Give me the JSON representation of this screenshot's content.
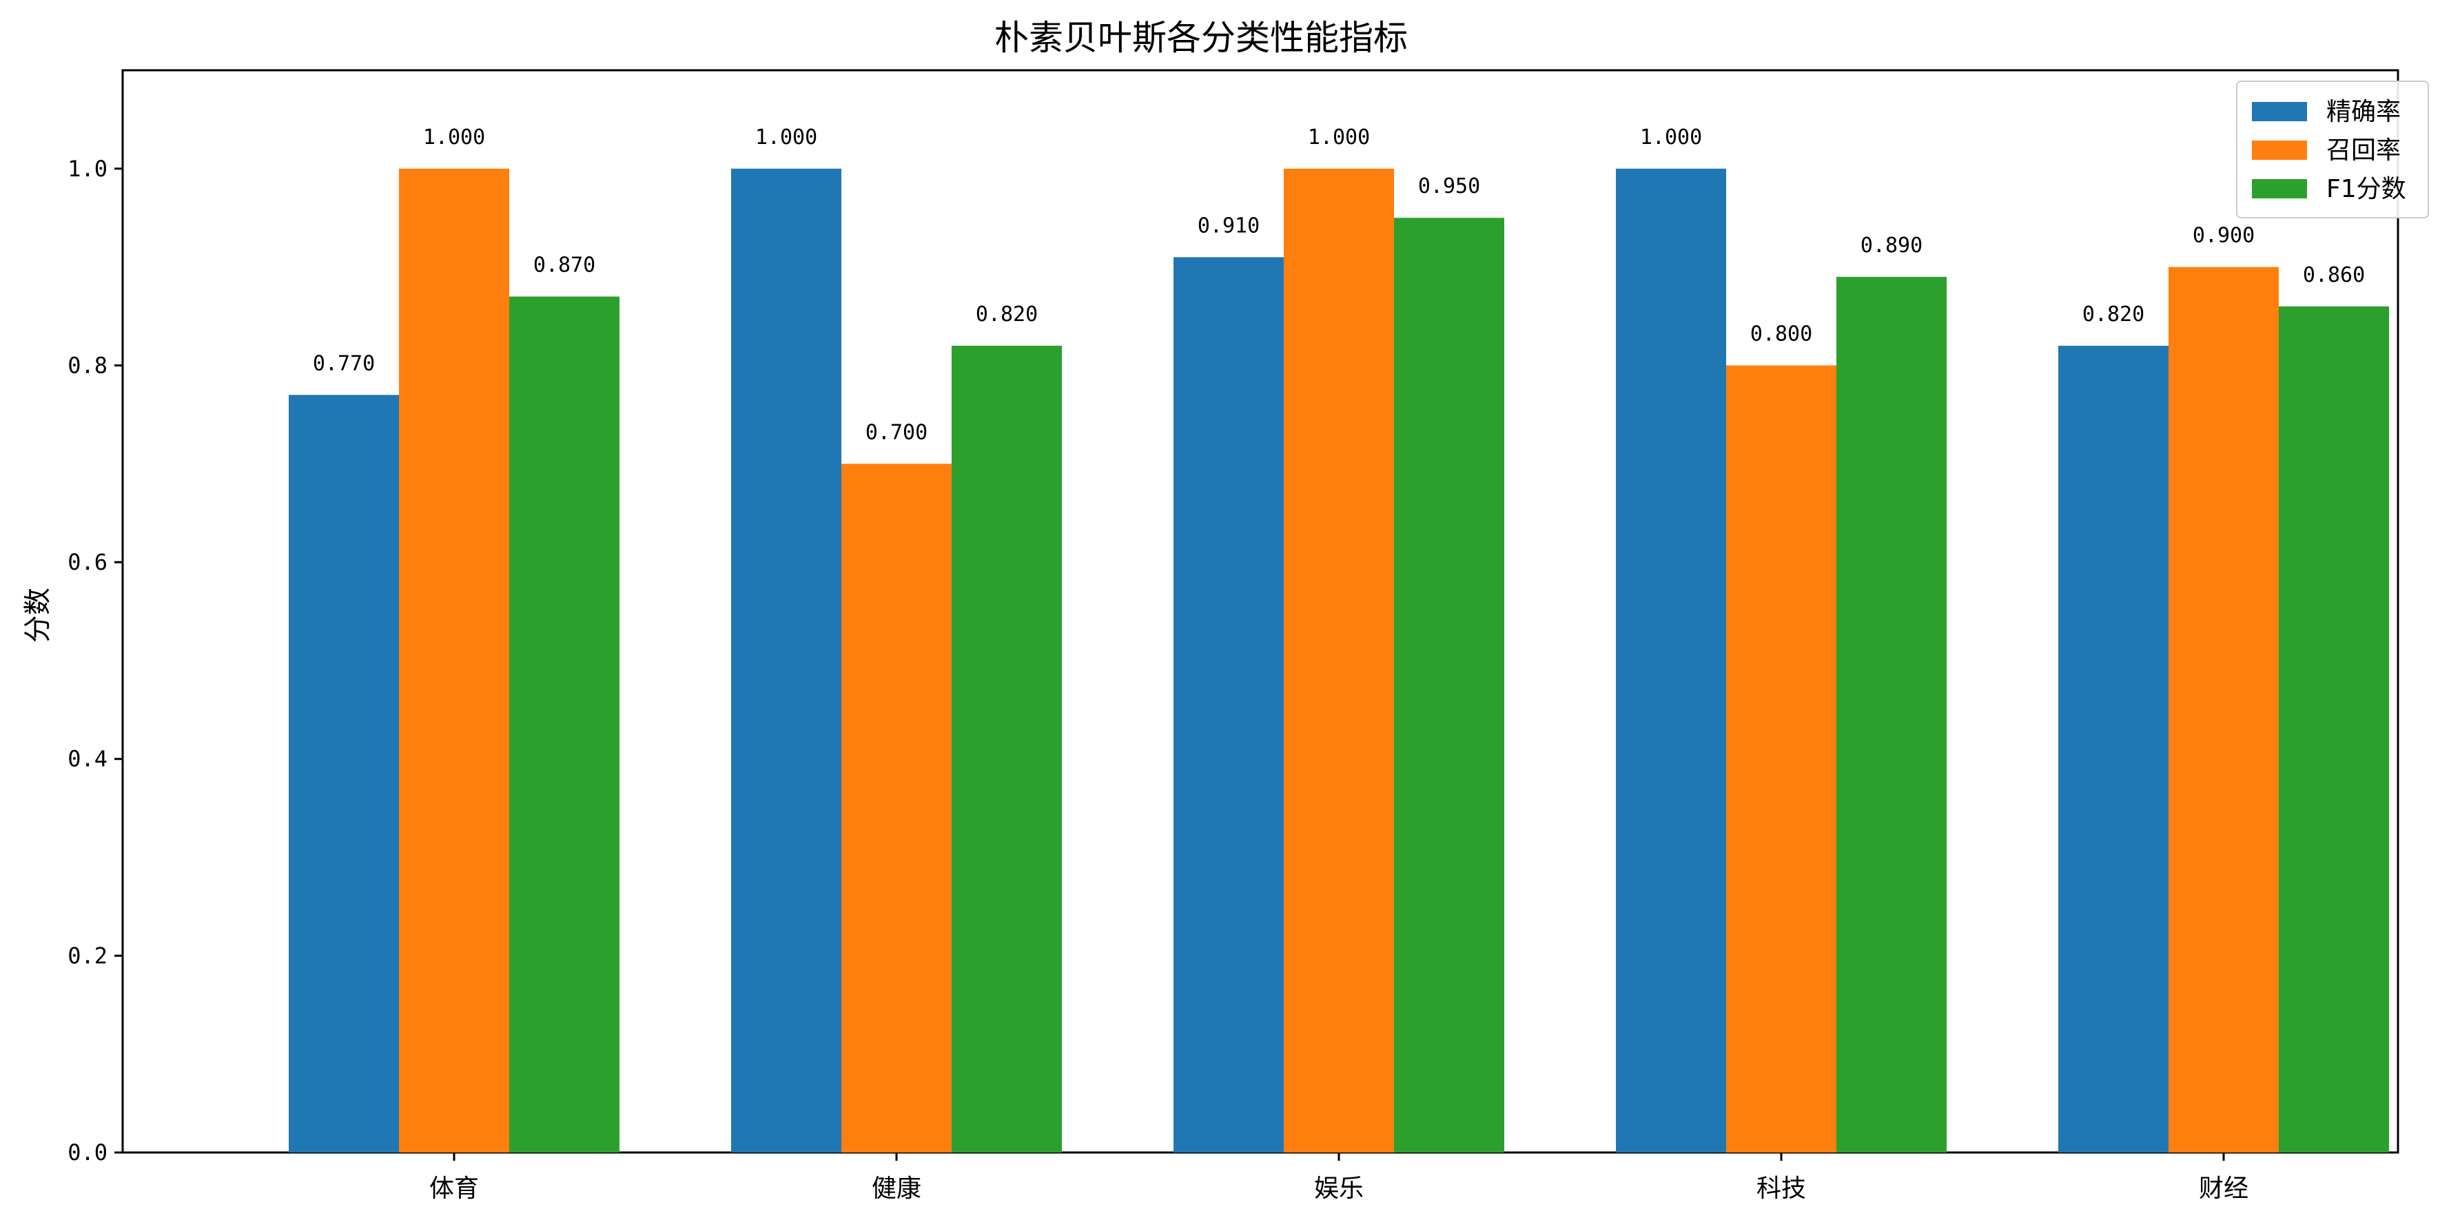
{
  "chart_data": {
    "type": "bar",
    "title": "朴素贝叶斯各分类性能指标",
    "xlabel": "",
    "ylabel": "分数",
    "ylim": [
      0,
      1.1
    ],
    "yticks": [
      "0.0",
      "0.2",
      "0.4",
      "0.6",
      "0.8",
      "1.0"
    ],
    "categories": [
      "体育",
      "健康",
      "娱乐",
      "科技",
      "财经"
    ],
    "series": [
      {
        "name": "精确率",
        "color": "#1f77b4",
        "values": [
          0.77,
          1.0,
          0.91,
          1.0,
          0.82
        ],
        "labels": [
          "0.770",
          "1.000",
          "0.910",
          "1.000",
          "0.820"
        ]
      },
      {
        "name": "召回率",
        "color": "#ff7f0e",
        "values": [
          1.0,
          0.7,
          1.0,
          0.8,
          0.9
        ],
        "labels": [
          "1.000",
          "0.700",
          "1.000",
          "0.800",
          "0.900"
        ]
      },
      {
        "name": "F1分数",
        "color": "#2ca02c",
        "values": [
          0.87,
          0.82,
          0.95,
          0.89,
          0.86
        ],
        "labels": [
          "0.870",
          "0.820",
          "0.950",
          "0.890",
          "0.860"
        ]
      }
    ],
    "legend": "top-right",
    "grid": false
  }
}
